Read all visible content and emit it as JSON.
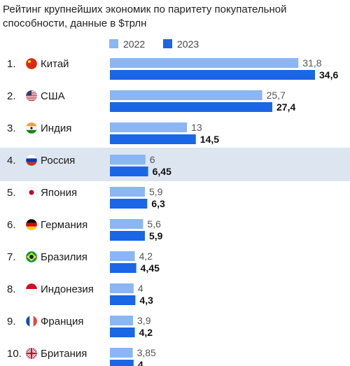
{
  "chart_data": {
    "type": "bar",
    "orientation": "horizontal",
    "title": "Рейтинг крупнейших экономик по паритету покупательной способности, данные в $трлн",
    "xlabel": "",
    "ylabel": "",
    "xlim": [
      0,
      34.6
    ],
    "grid": false,
    "legend_position": "top",
    "categories": [
      "Китай",
      "США",
      "Индия",
      "Россия",
      "Япония",
      "Германия",
      "Бразилия",
      "Индонезия",
      "Франция",
      "Британия"
    ],
    "ranks": [
      "1.",
      "2.",
      "3.",
      "4.",
      "5.",
      "6.",
      "7.",
      "8.",
      "9.",
      "10."
    ],
    "flag_icons": [
      "flag-china-icon",
      "flag-usa-icon",
      "flag-india-icon",
      "flag-russia-icon",
      "flag-japan-icon",
      "flag-germany-icon",
      "flag-brazil-icon",
      "flag-indonesia-icon",
      "flag-france-icon",
      "flag-uk-icon"
    ],
    "highlighted_category": "Россия",
    "series": [
      {
        "name": "2022",
        "color": "#8ab6f3",
        "values": [
          31.8,
          25.7,
          13,
          6,
          5.9,
          5.6,
          4.2,
          4,
          3.9,
          3.85
        ],
        "labels": [
          "31,8",
          "25,7",
          "13",
          "6",
          "5,9",
          "5,6",
          "4,2",
          "4",
          "3,9",
          "3,85"
        ]
      },
      {
        "name": "2023",
        "color": "#1a66e6",
        "values": [
          34.6,
          27.4,
          14.5,
          6.45,
          6.3,
          5.9,
          4.45,
          4.3,
          4.2,
          4
        ],
        "labels": [
          "34,6",
          "27,4",
          "14,5",
          "6,45",
          "6,3",
          "5,9",
          "4,45",
          "4,3",
          "4,2",
          "4"
        ]
      }
    ],
    "highlight_color": "#dde6f0"
  }
}
